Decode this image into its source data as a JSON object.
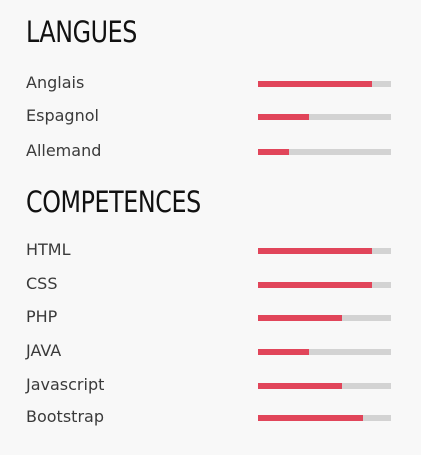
{
  "colors": {
    "accent": "#e1455a",
    "track": "#d3d3d3",
    "background": "#f8f8f8"
  },
  "languages": {
    "title": "LANGUES",
    "items": [
      {
        "label": "Anglais",
        "level": 0.86
      },
      {
        "label": "Espagnol",
        "level": 0.38
      },
      {
        "label": "Allemand",
        "level": 0.23
      }
    ]
  },
  "skills": {
    "title": "COMPETENCES",
    "items": [
      {
        "label": "HTML",
        "level": 0.86
      },
      {
        "label": "CSS",
        "level": 0.86
      },
      {
        "label": "PHP",
        "level": 0.63
      },
      {
        "label": "JAVA",
        "level": 0.38
      },
      {
        "label": "Javascript",
        "level": 0.63
      },
      {
        "label": "Bootstrap",
        "level": 0.79
      }
    ]
  }
}
